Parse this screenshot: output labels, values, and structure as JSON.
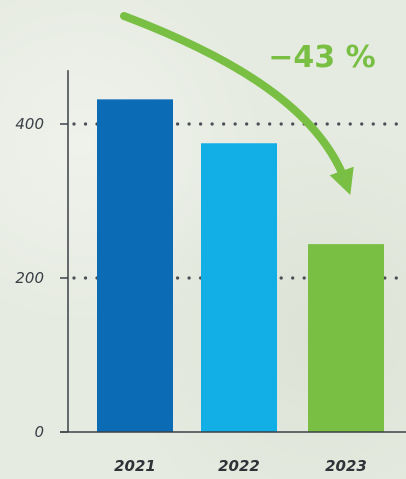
{
  "chart_data": {
    "type": "bar",
    "categories": [
      "2021",
      "2022",
      "2023"
    ],
    "values": [
      432,
      375,
      244
    ],
    "colors": [
      "#0b6cb5",
      "#12aee6",
      "#79bf43"
    ],
    "ylim": [
      0,
      470
    ],
    "yticks": [
      0,
      200,
      400
    ],
    "ytick_labels": [
      "0",
      "200",
      "400"
    ],
    "grid": "dotted at 200 and 400",
    "annotation": {
      "text": "−43 %",
      "color": "#79bf43"
    }
  }
}
